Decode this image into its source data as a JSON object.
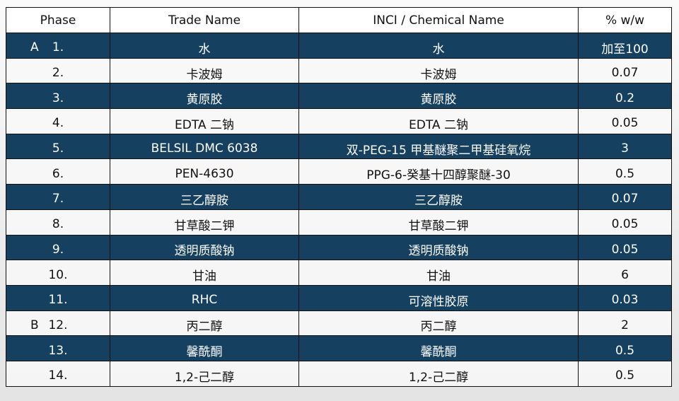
{
  "headers": [
    "Phase",
    "Trade Name",
    "INCI / Chemical Name",
    "% w/w"
  ],
  "colors": {
    "dark_row": "#15405f",
    "light_row": "#f8f8f8"
  },
  "rows": [
    {
      "phase": "A",
      "num": "1.",
      "trade": "水",
      "inci": "水",
      "pct": "加至100",
      "style": "dark"
    },
    {
      "phase": "",
      "num": "2.",
      "trade": "卡波姆",
      "inci": "卡波姆",
      "pct": "0.07",
      "style": "light"
    },
    {
      "phase": "",
      "num": "3.",
      "trade": "黄原胶",
      "inci": "黄原胶",
      "pct": "0.2",
      "style": "dark"
    },
    {
      "phase": "",
      "num": "4.",
      "trade": "EDTA 二钠",
      "inci": "EDTA 二钠",
      "pct": "0.05",
      "style": "light"
    },
    {
      "phase": "",
      "num": "5.",
      "trade": "BELSIL DMC 6038",
      "inci": "双-PEG-15 甲基醚聚二甲基硅氧烷",
      "pct": "3",
      "style": "dark"
    },
    {
      "phase": "",
      "num": "6.",
      "trade": "PEN-4630",
      "inci": "PPG-6-癸基十四醇聚醚-30",
      "pct": "0.5",
      "style": "light"
    },
    {
      "phase": "",
      "num": "7.",
      "trade": "三乙醇胺",
      "inci": "三乙醇胺",
      "pct": "0.07",
      "style": "dark"
    },
    {
      "phase": "",
      "num": "8.",
      "trade": "甘草酸二钾",
      "inci": "甘草酸二钾",
      "pct": "0.05",
      "style": "light"
    },
    {
      "phase": "",
      "num": "9.",
      "trade": "透明质酸钠",
      "inci": "透明质酸钠",
      "pct": "0.05",
      "style": "dark"
    },
    {
      "phase": "",
      "num": "10.",
      "trade": "甘油",
      "inci": "甘油",
      "pct": "6",
      "style": "light"
    },
    {
      "phase": "",
      "num": "11.",
      "trade": "RHC",
      "inci": "可溶性胶原",
      "pct": "0.03",
      "style": "dark"
    },
    {
      "phase": "B",
      "num": "12.",
      "trade": "丙二醇",
      "inci": "丙二醇",
      "pct": "2",
      "style": "light"
    },
    {
      "phase": "",
      "num": "13.",
      "trade": "馨酰酮",
      "inci": "馨酰酮",
      "pct": "0.5",
      "style": "dark"
    },
    {
      "phase": "",
      "num": "14.",
      "trade": "1,2-己二醇",
      "inci": "1,2-己二醇",
      "pct": "0.5",
      "style": "light"
    }
  ]
}
